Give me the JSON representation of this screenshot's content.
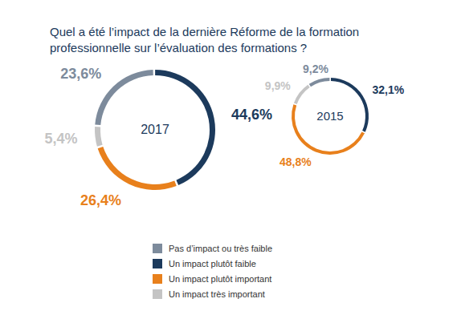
{
  "title": "Quel a été l’impact de la dernière Réforme de la formation professionnelle sur l’évaluation des formations ?",
  "legend": "bottom",
  "chart_data": [
    {
      "type": "pie",
      "title": "2017",
      "categories": [
        "Pas d’impact ou très faible",
        "Un impact plutôt faible",
        "Un impact plutôt important",
        "Un impact très important"
      ],
      "values": [
        23.6,
        44.6,
        26.4,
        5.4
      ],
      "value_labels": [
        "23,6%",
        "44,6%",
        "26,4%",
        "5,4%"
      ],
      "colors": [
        "#7d8b9c",
        "#1c3a5c",
        "#e8801c",
        "#c4c4c4"
      ],
      "data_labels": true
    },
    {
      "type": "pie",
      "title": "2015",
      "categories": [
        "Pas d’impact ou très faible",
        "Un impact plutôt faible",
        "Un impact plutôt important",
        "Un impact très important"
      ],
      "values": [
        9.2,
        32.1,
        48.8,
        9.9
      ],
      "value_labels": [
        "9,2%",
        "32,1%",
        "48,8%",
        "9,9%"
      ],
      "colors": [
        "#7d8b9c",
        "#1c3a5c",
        "#e8801c",
        "#c4c4c4"
      ],
      "data_labels": true
    }
  ]
}
